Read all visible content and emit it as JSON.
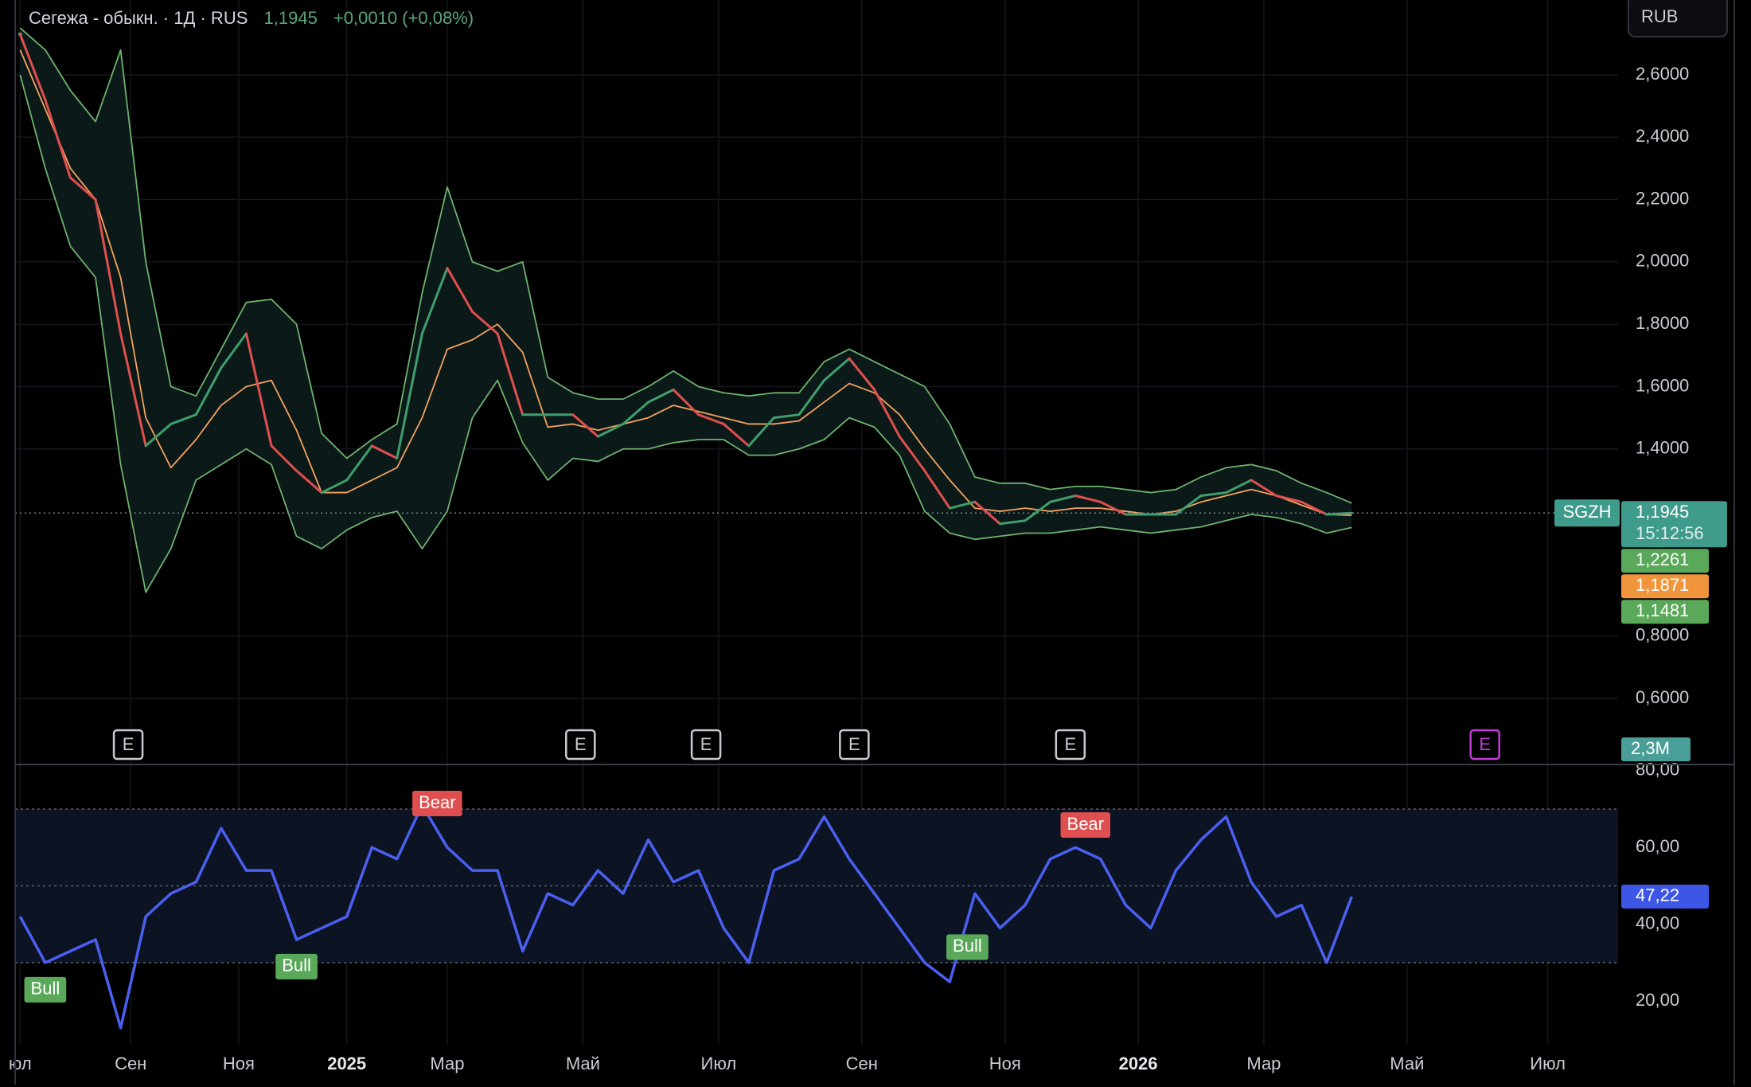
{
  "chart_data": [
    {
      "type": "line",
      "title": "Сегежа - обыкн. · 1Д · RUS",
      "last_price": "1,1945",
      "change": "+0,0010 (+0,08%)",
      "currency": "RUB",
      "x": [
        0,
        10,
        20,
        30,
        40,
        50,
        60,
        70,
        80,
        90,
        100,
        110,
        120,
        130,
        140,
        150,
        160,
        170,
        180,
        190,
        200,
        210,
        220,
        230,
        240,
        250,
        260,
        270,
        280,
        290,
        300,
        310,
        320,
        330,
        340,
        350,
        360,
        370,
        380,
        390,
        400,
        410,
        420,
        430,
        440,
        450,
        460,
        470,
        480,
        490,
        500,
        510,
        520,
        530
      ],
      "xlim": [
        -2,
        636
      ],
      "xticks": [
        {
          "value": 0,
          "label": "юл"
        },
        {
          "value": 44,
          "label": "Сен"
        },
        {
          "value": 87,
          "label": "Ноя"
        },
        {
          "value": 130,
          "label": "2025",
          "bold": true
        },
        {
          "value": 170,
          "label": "Мар"
        },
        {
          "value": 224,
          "label": "Май"
        },
        {
          "value": 278,
          "label": "Июл"
        },
        {
          "value": 335,
          "label": "Сен"
        },
        {
          "value": 392,
          "label": "Ноя"
        },
        {
          "value": 445,
          "label": "2026",
          "bold": true
        },
        {
          "value": 495,
          "label": "Мар"
        },
        {
          "value": 552,
          "label": "Май"
        },
        {
          "value": 608,
          "label": "Июл"
        }
      ],
      "ylim": [
        0.393,
        2.84
      ],
      "yticks": [
        {
          "value": 0.6,
          "label": "0,6000"
        },
        {
          "value": 0.8,
          "label": "0,8000"
        },
        {
          "value": 1.4,
          "label": "1,4000"
        },
        {
          "value": 1.6,
          "label": "1,6000"
        },
        {
          "value": 1.8,
          "label": "1,8000"
        },
        {
          "value": 2.0,
          "label": "2,0000"
        },
        {
          "value": 2.2,
          "label": "2,2000"
        },
        {
          "value": 2.4,
          "label": "2,4000"
        },
        {
          "value": 2.6,
          "label": "2,6000"
        }
      ],
      "grid": true,
      "band_fill": {
        "between": [
          1,
          3
        ],
        "color": "#0b1a18"
      },
      "series": [
        {
          "name": "SGZH",
          "up_color": "#3f9e6e",
          "down_color": "#e04f4f",
          "color": "#3f9b8c",
          "last_label": "1,1945",
          "countdown": "15:12:56",
          "values": [
            2.73,
            2.52,
            2.27,
            2.2,
            1.77,
            1.41,
            1.48,
            1.51,
            1.66,
            1.77,
            1.41,
            1.33,
            1.26,
            1.3,
            1.41,
            1.37,
            1.77,
            1.98,
            1.84,
            1.77,
            1.51,
            1.51,
            1.51,
            1.44,
            1.48,
            1.55,
            1.59,
            1.51,
            1.48,
            1.41,
            1.5,
            1.51,
            1.62,
            1.69,
            1.59,
            1.44,
            1.33,
            1.21,
            1.23,
            1.16,
            1.17,
            1.23,
            1.25,
            1.23,
            1.19,
            1.19,
            1.19,
            1.25,
            1.26,
            1.3,
            1.25,
            1.23,
            1.19,
            1.1945
          ]
        },
        {
          "color": "#6fb26f",
          "tag_color": "#5aa85a",
          "last_label": "1,2261",
          "values": [
            2.75,
            2.68,
            2.55,
            2.45,
            2.68,
            2.0,
            1.6,
            1.57,
            1.72,
            1.87,
            1.88,
            1.8,
            1.45,
            1.37,
            1.43,
            1.48,
            1.9,
            2.24,
            2.0,
            1.97,
            2.0,
            1.63,
            1.58,
            1.56,
            1.56,
            1.6,
            1.65,
            1.6,
            1.58,
            1.57,
            1.58,
            1.58,
            1.68,
            1.72,
            1.68,
            1.64,
            1.6,
            1.48,
            1.31,
            1.29,
            1.29,
            1.27,
            1.28,
            1.28,
            1.27,
            1.26,
            1.27,
            1.31,
            1.34,
            1.35,
            1.33,
            1.29,
            1.26,
            1.2261
          ]
        },
        {
          "color": "#f4a261",
          "tag_color": "#f0953c",
          "last_label": "1,1871",
          "values": [
            2.68,
            2.49,
            2.3,
            2.2,
            1.95,
            1.5,
            1.34,
            1.43,
            1.54,
            1.6,
            1.62,
            1.46,
            1.26,
            1.26,
            1.3,
            1.34,
            1.5,
            1.72,
            1.75,
            1.8,
            1.71,
            1.47,
            1.48,
            1.46,
            1.48,
            1.5,
            1.54,
            1.52,
            1.5,
            1.48,
            1.48,
            1.49,
            1.55,
            1.61,
            1.58,
            1.51,
            1.4,
            1.3,
            1.21,
            1.2,
            1.21,
            1.2,
            1.21,
            1.21,
            1.2,
            1.19,
            1.2,
            1.23,
            1.25,
            1.27,
            1.25,
            1.22,
            1.19,
            1.1871
          ]
        },
        {
          "color": "#6fb26f",
          "tag_color": "#5aa85a",
          "last_label": "1,1481",
          "values": [
            2.6,
            2.3,
            2.05,
            1.95,
            1.35,
            0.94,
            1.08,
            1.3,
            1.35,
            1.4,
            1.35,
            1.12,
            1.08,
            1.14,
            1.18,
            1.2,
            1.08,
            1.2,
            1.5,
            1.62,
            1.42,
            1.3,
            1.37,
            1.36,
            1.4,
            1.4,
            1.42,
            1.43,
            1.43,
            1.38,
            1.38,
            1.4,
            1.43,
            1.5,
            1.47,
            1.38,
            1.2,
            1.13,
            1.11,
            1.12,
            1.13,
            1.13,
            1.14,
            1.15,
            1.14,
            1.13,
            1.14,
            1.15,
            1.17,
            1.19,
            1.18,
            1.16,
            1.13,
            1.1481
          ]
        }
      ],
      "events": [
        {
          "x": 43,
          "label": "E",
          "color": "#c8cbd2"
        },
        {
          "x": 223,
          "label": "E",
          "color": "#c8cbd2"
        },
        {
          "x": 273,
          "label": "E",
          "color": "#c8cbd2"
        },
        {
          "x": 332,
          "label": "E",
          "color": "#c8cbd2"
        },
        {
          "x": 418,
          "label": "E",
          "color": "#c8cbd2"
        },
        {
          "x": 583,
          "label": "E",
          "color": "#c23bd8"
        }
      ],
      "volume_label": "2,3M",
      "volume_color": "#4a9e98"
    },
    {
      "type": "line",
      "ylim": [
        8.6,
        81.2
      ],
      "yticks": [
        {
          "value": 20,
          "label": "20,00"
        },
        {
          "value": 40,
          "label": "40,00"
        },
        {
          "value": 60,
          "label": "60,00"
        },
        {
          "value": 80,
          "label": "80,00"
        }
      ],
      "grid": false,
      "levels": [
        30,
        50,
        70
      ],
      "band_color": "#0c1424",
      "series": [
        {
          "color": "#4b5ff0",
          "tag_color": "#3d56e6",
          "last_label": "47,22",
          "values": [
            42,
            30,
            33,
            36,
            13,
            42,
            48,
            51,
            65,
            54,
            54,
            36,
            39,
            42,
            60,
            57,
            71,
            60,
            54,
            54,
            33,
            48,
            45,
            54,
            48,
            62,
            51,
            54,
            39,
            30,
            54,
            57,
            68,
            57,
            48,
            39,
            30,
            25,
            48,
            39,
            45,
            57,
            60,
            57,
            45,
            39,
            54,
            62,
            68,
            51,
            42,
            45,
            30,
            47.22
          ]
        }
      ],
      "signals": [
        {
          "x": 10,
          "label": "Bull",
          "color": "#5aa85a"
        },
        {
          "x": 110,
          "label": "Bull",
          "color": "#5aa85a"
        },
        {
          "x": 166,
          "label": "Bear",
          "color": "#e04f4f"
        },
        {
          "x": 377,
          "label": "Bull",
          "color": "#5aa85a"
        },
        {
          "x": 424,
          "label": "Bear",
          "color": "#e04f4f"
        }
      ]
    }
  ]
}
